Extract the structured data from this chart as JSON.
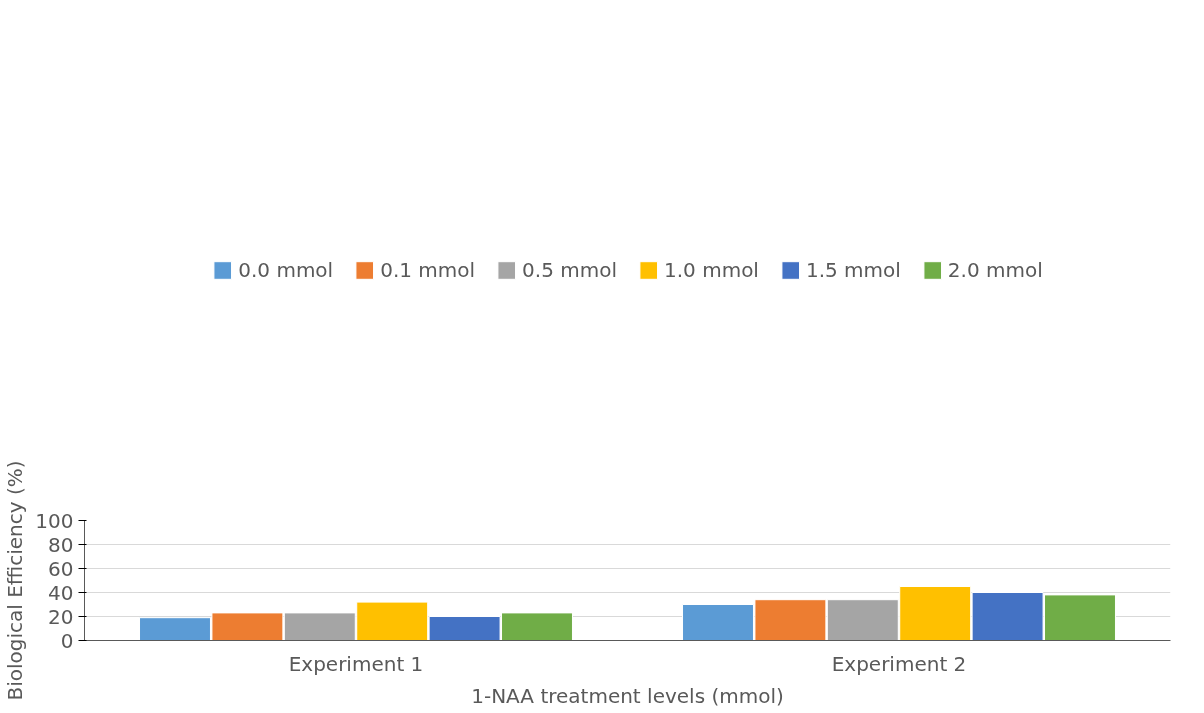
{
  "chart_data": {
    "type": "bar",
    "xlabel": "1-NAA treatment levels (mmol)",
    "ylabel": "Biological Efficiency (%)",
    "categories": [
      "Experiment 1",
      "Experiment 2"
    ],
    "series": [
      {
        "name": "0.0 mmol",
        "color": "#5b9bd5",
        "values": [
          19,
          30
        ]
      },
      {
        "name": "0.1 mmol",
        "color": "#ed7d31",
        "values": [
          23,
          34
        ]
      },
      {
        "name": "0.5 mmol",
        "color": "#a5a5a5",
        "values": [
          23,
          34
        ]
      },
      {
        "name": "1.0 mmol",
        "color": "#ffc000",
        "values": [
          32,
          45
        ]
      },
      {
        "name": "1.5 mmol",
        "color": "#4472c4",
        "values": [
          20,
          40
        ]
      },
      {
        "name": "2.0 mmol",
        "color": "#70ad47",
        "values": [
          23,
          38
        ]
      }
    ],
    "ylim": [
      0,
      100
    ],
    "yticks": [
      0,
      20,
      40,
      60,
      80,
      100
    ],
    "grid": "y",
    "legend": "top"
  }
}
